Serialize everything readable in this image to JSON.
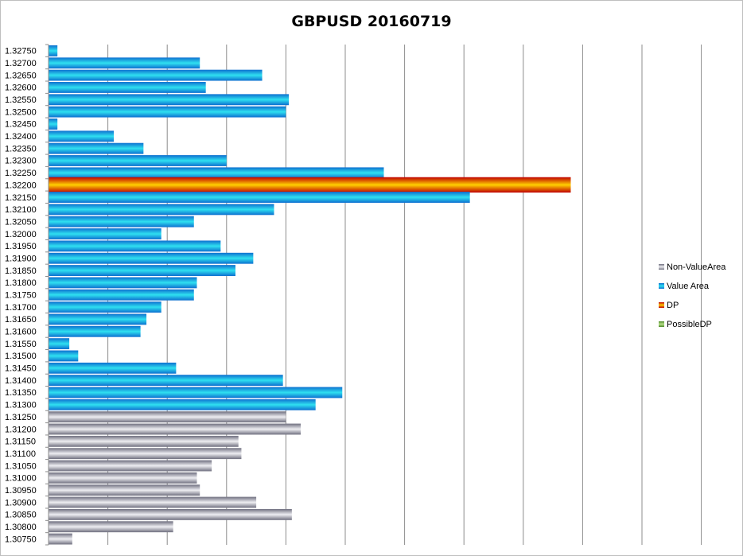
{
  "chart_data": {
    "type": "bar",
    "orientation": "horizontal",
    "title": "GBPUSD 20160719",
    "xlabel": "",
    "ylabel": "",
    "grid": "vertical",
    "legend_position": "right",
    "xlim": [
      0,
      11
    ],
    "categories": [
      "1.32750",
      "1.32700",
      "1.32650",
      "1.32600",
      "1.32550",
      "1.32500",
      "1.32450",
      "1.32400",
      "1.32350",
      "1.32300",
      "1.32250",
      "1.32200",
      "1.32150",
      "1.32100",
      "1.32050",
      "1.32000",
      "1.31950",
      "1.31900",
      "1.31850",
      "1.31800",
      "1.31750",
      "1.31700",
      "1.31650",
      "1.31600",
      "1.31550",
      "1.31500",
      "1.31450",
      "1.31400",
      "1.31350",
      "1.31300",
      "1.31250",
      "1.31200",
      "1.31150",
      "1.31100",
      "1.31050",
      "1.31000",
      "1.30950",
      "1.30900",
      "1.30850",
      "1.30800",
      "1.30750"
    ],
    "values": [
      0.15,
      2.55,
      3.6,
      2.65,
      4.05,
      4.0,
      0.15,
      1.1,
      1.6,
      3.0,
      5.65,
      8.8,
      7.1,
      3.8,
      2.45,
      1.9,
      2.9,
      3.45,
      3.15,
      2.5,
      2.45,
      1.9,
      1.65,
      1.55,
      0.35,
      0.5,
      2.15,
      3.95,
      4.95,
      4.5,
      4.0,
      4.25,
      3.2,
      3.25,
      2.75,
      2.5,
      2.55,
      3.5,
      4.1,
      2.1,
      0.4
    ],
    "bar_class": [
      "value",
      "value",
      "value",
      "value",
      "value",
      "value",
      "value",
      "value",
      "value",
      "value",
      "value",
      "dp",
      "value",
      "value",
      "value",
      "value",
      "value",
      "value",
      "value",
      "value",
      "value",
      "value",
      "value",
      "value",
      "value",
      "value",
      "value",
      "value",
      "value",
      "value",
      "nonvalue",
      "nonvalue",
      "nonvalue",
      "nonvalue",
      "nonvalue",
      "nonvalue",
      "nonvalue",
      "nonvalue",
      "nonvalue",
      "nonvalue",
      "nonvalue"
    ],
    "legend": [
      {
        "key": "nonvalue",
        "label": "Non-ValueArea"
      },
      {
        "key": "value",
        "label": "Value Area"
      },
      {
        "key": "dp",
        "label": "DP"
      },
      {
        "key": "possible",
        "label": "PossibleDP"
      }
    ],
    "colors": {
      "nonvalue": [
        "#6f6f7f",
        "#eeeef2",
        "#6f6f7f"
      ],
      "value": [
        "#0d6fd0",
        "#2fe0f0",
        "#0d6fd0"
      ],
      "dp": [
        "#c00000",
        "#ffd000",
        "#c00000"
      ],
      "possible": [
        "#4d8a2a",
        "#b9e08a",
        "#4d8a2a"
      ],
      "grid": "#8c8c8c",
      "axis": "#8c8c8c"
    }
  }
}
